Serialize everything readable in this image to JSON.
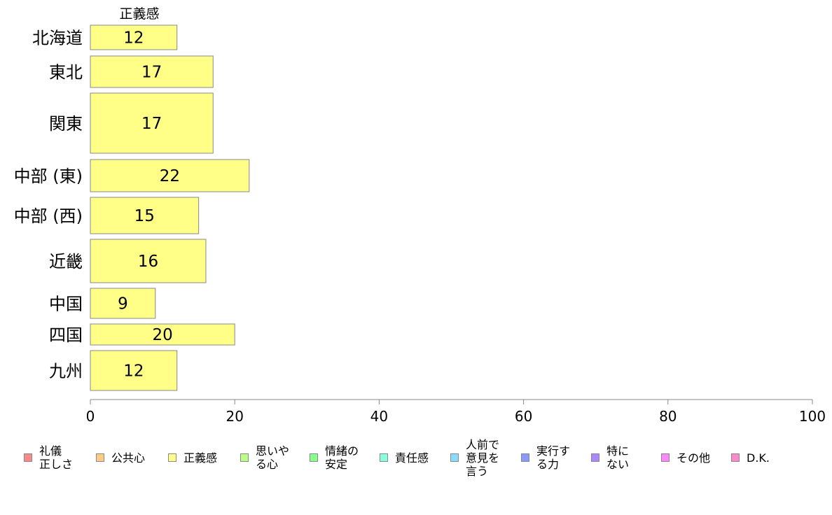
{
  "chart_data": {
    "type": "bar",
    "orientation": "horizontal",
    "series_title": "正義感",
    "categories": [
      "北海道",
      "東北",
      "関東",
      "中部 (東)",
      "中部 (西)",
      "近畿",
      "中国",
      "四国",
      "九州"
    ],
    "series": [
      {
        "name": "正義感",
        "color": "#ffff88",
        "values": [
          12,
          17,
          17,
          22,
          15,
          16,
          9,
          20,
          12
        ]
      }
    ],
    "xlim": [
      0,
      100
    ],
    "xticks": [
      "0",
      "20",
      "40",
      "60",
      "80",
      "100"
    ],
    "grid": false,
    "legend_position": "bottom"
  },
  "legend": [
    {
      "label": "礼儀\n正しさ",
      "color": "#ff8888"
    },
    {
      "label": "公共心",
      "color": "#ffcc88"
    },
    {
      "label": "正義感",
      "color": "#ffff88"
    },
    {
      "label": "思いや\nる心",
      "color": "#bbff88"
    },
    {
      "label": "情緒の\n安定",
      "color": "#88ff88"
    },
    {
      "label": "責任感",
      "color": "#88ffdd"
    },
    {
      "label": "人前で\n意見を\n言う",
      "color": "#88ddff"
    },
    {
      "label": "実行す\nる力",
      "color": "#8899ff"
    },
    {
      "label": "特に\nない",
      "color": "#aa88ff"
    },
    {
      "label": "その他",
      "color": "#ff88ff"
    },
    {
      "label": "D.K.",
      "color": "#ff88cc"
    }
  ]
}
